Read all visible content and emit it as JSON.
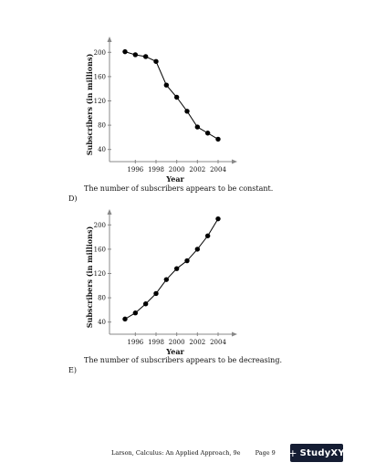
{
  "charts": [
    {
      "chart_data": {
        "type": "line",
        "x": [
          1995,
          1996,
          1997,
          1998,
          1999,
          2000,
          2001,
          2002,
          2003,
          2004
        ],
        "values": [
          201,
          196,
          193,
          185,
          146,
          126,
          103,
          77,
          67,
          57
        ],
        "xlabel": "Year",
        "ylabel": "Subscribers (in millions)",
        "xticks": [
          "1996",
          "1998",
          "2000",
          "2002",
          "2004"
        ],
        "yticks": [
          "40",
          "80",
          "120",
          "160",
          "200"
        ],
        "xlim": [
          1993.5,
          2005.5
        ],
        "ylim": [
          20,
          220
        ]
      },
      "caption": "The number of subscribers appears to be constant.",
      "next_option": "D)"
    },
    {
      "chart_data": {
        "type": "line",
        "x": [
          1995,
          1996,
          1997,
          1998,
          1999,
          2000,
          2001,
          2002,
          2003,
          2004
        ],
        "values": [
          45,
          55,
          70,
          87,
          110,
          128,
          141,
          160,
          182,
          210
        ],
        "xlabel": "Year",
        "ylabel": "Subscribers (in millions)",
        "xticks": [
          "1996",
          "1998",
          "2000",
          "2002",
          "2004"
        ],
        "yticks": [
          "40",
          "80",
          "120",
          "160",
          "200"
        ],
        "xlim": [
          1993.5,
          2005.5
        ],
        "ylim": [
          20,
          220
        ]
      },
      "caption": "The number of subscribers appears to be decreasing.",
      "next_option": "E)"
    }
  ],
  "footer": {
    "text": "Larson, Calculus: An Applied Approach, 9e",
    "page": "Page 9"
  },
  "logo": {
    "symbol": "+",
    "text": "StudyXY",
    "bg": "#151d33"
  }
}
